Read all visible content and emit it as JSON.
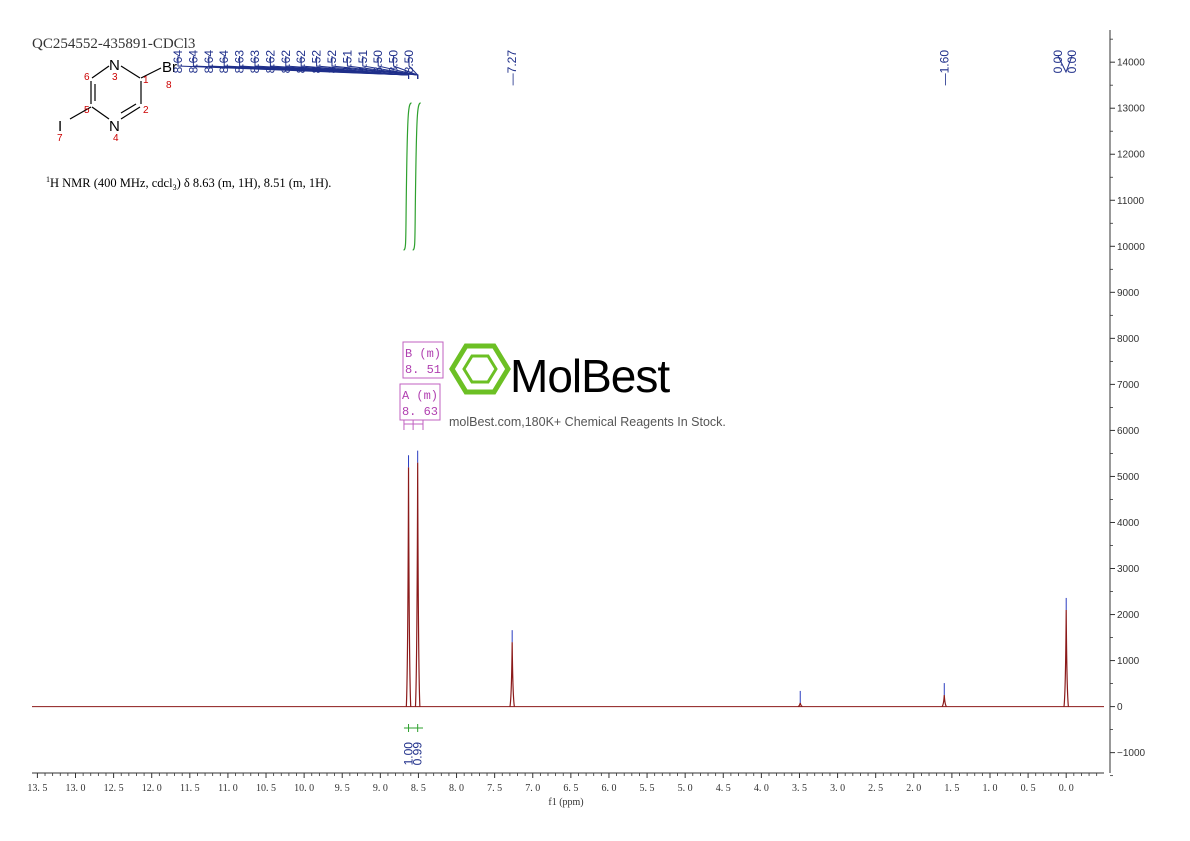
{
  "sample_id": "QC254552-435891-CDCl3",
  "nmr_description": {
    "prefix_sup": "1",
    "main_1": "H NMR (400 MHz, cdcl",
    "sub": "3",
    "main_2": ") δ 8.63 (m, 1H), 8.51 (m, 1H)."
  },
  "structure": {
    "atoms": [
      "N",
      "N",
      "Br",
      "I"
    ],
    "atom_numbers": [
      "1",
      "2",
      "3",
      "4",
      "5",
      "6",
      "7",
      "8"
    ]
  },
  "watermark": {
    "brand": "MolBest",
    "tagline": "molBest.com,180K+ Chemical Reagents In Stock."
  },
  "colors": {
    "spectrum": "#8b1a1a",
    "peak_labels": "#1f2f8a",
    "integral": "#2ea02e",
    "multiplet_box": "#c060c0",
    "logo": "#6cc024"
  },
  "chart_data": {
    "type": "line",
    "title": "",
    "xlabel": "f1 (ppm)",
    "ylabel": "",
    "xlim": [
      13.5,
      -0.5
    ],
    "x_reversed": true,
    "ylim": [
      -1500,
      14700
    ],
    "x_ticks": [
      "13.5",
      "13.0",
      "12.5",
      "12.0",
      "11.5",
      "11.0",
      "10.5",
      "10.0",
      "9.5",
      "9.0",
      "8.5",
      "8.0",
      "7.5",
      "7.0",
      "6.5",
      "6.0",
      "5.5",
      "5.0",
      "4.5",
      "4.0",
      "3.5",
      "3.0",
      "2.5",
      "2.0",
      "1.5",
      "1.0",
      "0.5",
      "0.0"
    ],
    "y_ticks": [
      "14000",
      "13000",
      "12000",
      "11000",
      "10000",
      "9000",
      "8000",
      "7000",
      "6000",
      "5000",
      "4000",
      "3000",
      "2000",
      "1000",
      "0",
      "-1000"
    ],
    "peaks": [
      {
        "ppm": 8.63,
        "height": 5200
      },
      {
        "ppm": 8.51,
        "height": 5300
      },
      {
        "ppm": 7.27,
        "height": 1400
      },
      {
        "ppm": 3.49,
        "height": 80
      },
      {
        "ppm": 1.6,
        "height": 250
      },
      {
        "ppm": 0.0,
        "height": 2100
      }
    ],
    "peak_labels": {
      "aromatic_group": [
        "8.64",
        "8.64",
        "8.64",
        "8.64",
        "8.63",
        "8.63",
        "8.62",
        "8.62",
        "8.62",
        "8.52",
        "8.52",
        "8.51",
        "8.51",
        "8.50",
        "8.50",
        "8.50"
      ],
      "singles": [
        {
          "text": "7.27",
          "ppm": 7.27
        },
        {
          "text": "1.60",
          "ppm": 1.6
        }
      ],
      "tms_group": [
        "0.00",
        "0.00"
      ]
    },
    "multiplets": [
      {
        "letter": "A (m)",
        "shift": "8.63",
        "ppm": 8.63
      },
      {
        "letter": "B (m)",
        "shift": "8.51",
        "ppm": 8.51
      }
    ],
    "integrals": [
      {
        "value": "1.00",
        "ppm": 8.63
      },
      {
        "value": "0.99",
        "ppm": 8.51
      }
    ]
  }
}
